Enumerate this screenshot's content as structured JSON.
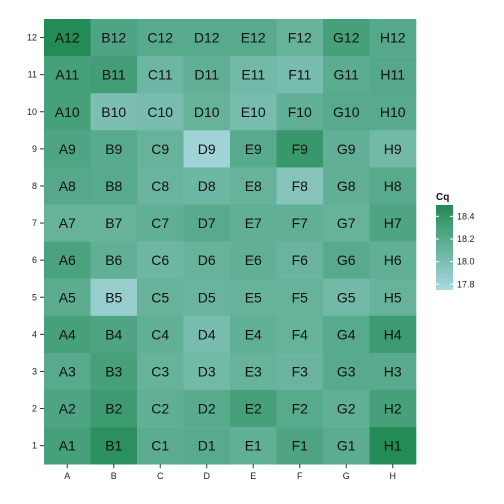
{
  "chart_data": {
    "type": "heatmap",
    "x_categories": [
      "A",
      "B",
      "C",
      "D",
      "E",
      "F",
      "G",
      "H"
    ],
    "y_categories": [
      "1",
      "2",
      "3",
      "4",
      "5",
      "6",
      "7",
      "8",
      "9",
      "10",
      "11",
      "12"
    ],
    "legend": {
      "title": "Cq",
      "ticks": [
        "18.4",
        "18.2",
        "18.0",
        "17.8"
      ],
      "tick_values": [
        18.4,
        18.2,
        18.0,
        17.8
      ],
      "range": [
        17.75,
        18.5
      ],
      "low_color": "#a8d8e0",
      "high_color": "#238b55",
      "position": "right"
    },
    "values": [
      {
        "row": "12",
        "cells": [
          18.5,
          18.25,
          18.2,
          18.2,
          18.2,
          18.12,
          18.3,
          18.22
        ]
      },
      {
        "row": "11",
        "cells": [
          18.3,
          18.32,
          18.08,
          18.15,
          18.05,
          18.02,
          18.18,
          18.22
        ]
      },
      {
        "row": "10",
        "cells": [
          18.3,
          18.0,
          18.02,
          18.12,
          18.02,
          18.15,
          18.2,
          18.2
        ]
      },
      {
        "row": "9",
        "cells": [
          18.25,
          18.2,
          18.12,
          17.8,
          18.2,
          18.38,
          18.15,
          18.05
        ]
      },
      {
        "row": "8",
        "cells": [
          18.22,
          18.2,
          18.1,
          18.08,
          18.12,
          17.95,
          18.15,
          18.2
        ]
      },
      {
        "row": "7",
        "cells": [
          18.12,
          18.12,
          18.15,
          18.2,
          18.15,
          18.15,
          18.12,
          18.25
        ]
      },
      {
        "row": "6",
        "cells": [
          18.28,
          18.15,
          18.08,
          18.12,
          18.15,
          18.1,
          18.2,
          18.15
        ]
      },
      {
        "row": "5",
        "cells": [
          18.18,
          17.85,
          18.12,
          18.1,
          18.12,
          18.12,
          18.05,
          18.12
        ]
      },
      {
        "row": "4",
        "cells": [
          18.3,
          18.25,
          18.15,
          18.02,
          18.15,
          18.12,
          18.2,
          18.35
        ]
      },
      {
        "row": "3",
        "cells": [
          18.2,
          18.3,
          18.12,
          18.05,
          18.12,
          18.1,
          18.2,
          18.2
        ]
      },
      {
        "row": "2",
        "cells": [
          18.25,
          18.35,
          18.15,
          18.2,
          18.3,
          18.2,
          18.15,
          18.3
        ]
      },
      {
        "row": "1",
        "cells": [
          18.3,
          18.45,
          18.18,
          18.2,
          18.15,
          18.25,
          18.18,
          18.5
        ]
      }
    ]
  }
}
